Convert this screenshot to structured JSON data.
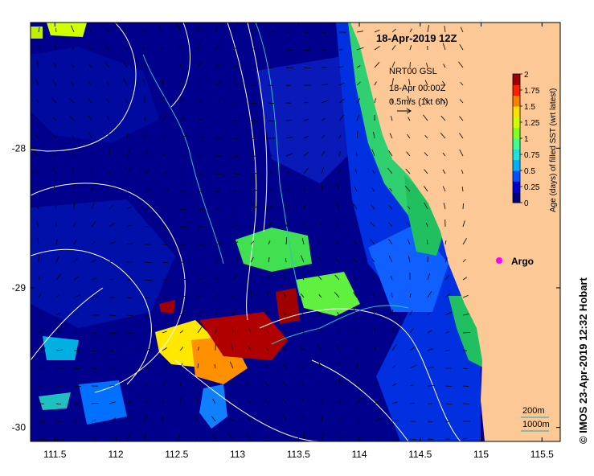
{
  "map": {
    "title": "18-Apr-2019 12Z",
    "current_info": {
      "line1": "NRT00 GSL",
      "line2": "18-Apr 00:00Z",
      "line3": "0.5m/s (1kt 6h)"
    },
    "argo_label": "Argo",
    "contour_labels": [
      "200m",
      "1000m"
    ],
    "credit": "© IMOS 23-Apr-2019 12:32 Hobart"
  },
  "axes": {
    "x_ticks": [
      "111.5",
      "112",
      "112.5",
      "113",
      "113.5",
      "114",
      "114.5",
      "115",
      "115.5"
    ],
    "x_values": [
      111.5,
      112,
      112.5,
      113,
      113.5,
      114,
      114.5,
      115,
      115.5
    ],
    "y_ticks": [
      "-28",
      "-29",
      "-30"
    ],
    "y_values": [
      -28,
      -29,
      -30
    ],
    "lon_range": [
      111.3,
      115.65
    ],
    "lat_range": [
      -30.1,
      -27.1
    ]
  },
  "colorbar": {
    "label": "Age (days) of filled SST (wrt latest)",
    "ticks": [
      "2",
      "1.75",
      "1.5",
      "1.25",
      "1",
      "0.75",
      "0.5",
      "0.25",
      "0"
    ],
    "range": [
      0,
      2
    ],
    "colors": [
      "#00007f",
      "#0000d0",
      "#0050ff",
      "#00b0ff",
      "#20e0e0",
      "#40ff90",
      "#80ff20",
      "#d0ff00",
      "#ffe000",
      "#ff8000",
      "#ff2000",
      "#a00000"
    ]
  },
  "colors": {
    "land": "#fbc896",
    "ocean_base": "#00008c",
    "contour": "#ffffff",
    "argo": "#ff00ff"
  }
}
